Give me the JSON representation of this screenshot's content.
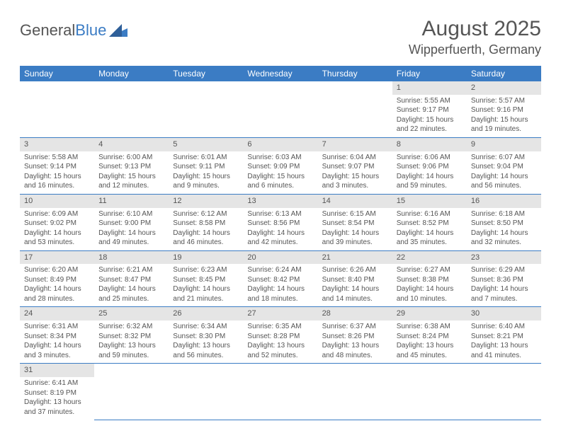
{
  "logo": {
    "text1": "General",
    "text2": "Blue"
  },
  "title": "August 2025",
  "location": "Wipperfuerth, Germany",
  "colors": {
    "header_bg": "#3b7cc4",
    "header_text": "#ffffff",
    "daynum_bg": "#e5e5e5",
    "text": "#555555",
    "row_divider": "#3b7cc4"
  },
  "weekdays": [
    "Sunday",
    "Monday",
    "Tuesday",
    "Wednesday",
    "Thursday",
    "Friday",
    "Saturday"
  ],
  "weeks": [
    [
      null,
      null,
      null,
      null,
      null,
      {
        "n": "1",
        "sr": "5:55 AM",
        "ss": "9:17 PM",
        "dl": "15 hours and 22 minutes."
      },
      {
        "n": "2",
        "sr": "5:57 AM",
        "ss": "9:16 PM",
        "dl": "15 hours and 19 minutes."
      }
    ],
    [
      {
        "n": "3",
        "sr": "5:58 AM",
        "ss": "9:14 PM",
        "dl": "15 hours and 16 minutes."
      },
      {
        "n": "4",
        "sr": "6:00 AM",
        "ss": "9:13 PM",
        "dl": "15 hours and 12 minutes."
      },
      {
        "n": "5",
        "sr": "6:01 AM",
        "ss": "9:11 PM",
        "dl": "15 hours and 9 minutes."
      },
      {
        "n": "6",
        "sr": "6:03 AM",
        "ss": "9:09 PM",
        "dl": "15 hours and 6 minutes."
      },
      {
        "n": "7",
        "sr": "6:04 AM",
        "ss": "9:07 PM",
        "dl": "15 hours and 3 minutes."
      },
      {
        "n": "8",
        "sr": "6:06 AM",
        "ss": "9:06 PM",
        "dl": "14 hours and 59 minutes."
      },
      {
        "n": "9",
        "sr": "6:07 AM",
        "ss": "9:04 PM",
        "dl": "14 hours and 56 minutes."
      }
    ],
    [
      {
        "n": "10",
        "sr": "6:09 AM",
        "ss": "9:02 PM",
        "dl": "14 hours and 53 minutes."
      },
      {
        "n": "11",
        "sr": "6:10 AM",
        "ss": "9:00 PM",
        "dl": "14 hours and 49 minutes."
      },
      {
        "n": "12",
        "sr": "6:12 AM",
        "ss": "8:58 PM",
        "dl": "14 hours and 46 minutes."
      },
      {
        "n": "13",
        "sr": "6:13 AM",
        "ss": "8:56 PM",
        "dl": "14 hours and 42 minutes."
      },
      {
        "n": "14",
        "sr": "6:15 AM",
        "ss": "8:54 PM",
        "dl": "14 hours and 39 minutes."
      },
      {
        "n": "15",
        "sr": "6:16 AM",
        "ss": "8:52 PM",
        "dl": "14 hours and 35 minutes."
      },
      {
        "n": "16",
        "sr": "6:18 AM",
        "ss": "8:50 PM",
        "dl": "14 hours and 32 minutes."
      }
    ],
    [
      {
        "n": "17",
        "sr": "6:20 AM",
        "ss": "8:49 PM",
        "dl": "14 hours and 28 minutes."
      },
      {
        "n": "18",
        "sr": "6:21 AM",
        "ss": "8:47 PM",
        "dl": "14 hours and 25 minutes."
      },
      {
        "n": "19",
        "sr": "6:23 AM",
        "ss": "8:45 PM",
        "dl": "14 hours and 21 minutes."
      },
      {
        "n": "20",
        "sr": "6:24 AM",
        "ss": "8:42 PM",
        "dl": "14 hours and 18 minutes."
      },
      {
        "n": "21",
        "sr": "6:26 AM",
        "ss": "8:40 PM",
        "dl": "14 hours and 14 minutes."
      },
      {
        "n": "22",
        "sr": "6:27 AM",
        "ss": "8:38 PM",
        "dl": "14 hours and 10 minutes."
      },
      {
        "n": "23",
        "sr": "6:29 AM",
        "ss": "8:36 PM",
        "dl": "14 hours and 7 minutes."
      }
    ],
    [
      {
        "n": "24",
        "sr": "6:31 AM",
        "ss": "8:34 PM",
        "dl": "14 hours and 3 minutes."
      },
      {
        "n": "25",
        "sr": "6:32 AM",
        "ss": "8:32 PM",
        "dl": "13 hours and 59 minutes."
      },
      {
        "n": "26",
        "sr": "6:34 AM",
        "ss": "8:30 PM",
        "dl": "13 hours and 56 minutes."
      },
      {
        "n": "27",
        "sr": "6:35 AM",
        "ss": "8:28 PM",
        "dl": "13 hours and 52 minutes."
      },
      {
        "n": "28",
        "sr": "6:37 AM",
        "ss": "8:26 PM",
        "dl": "13 hours and 48 minutes."
      },
      {
        "n": "29",
        "sr": "6:38 AM",
        "ss": "8:24 PM",
        "dl": "13 hours and 45 minutes."
      },
      {
        "n": "30",
        "sr": "6:40 AM",
        "ss": "8:21 PM",
        "dl": "13 hours and 41 minutes."
      }
    ],
    [
      {
        "n": "31",
        "sr": "6:41 AM",
        "ss": "8:19 PM",
        "dl": "13 hours and 37 minutes."
      },
      null,
      null,
      null,
      null,
      null,
      null
    ]
  ],
  "labels": {
    "sunrise": "Sunrise:",
    "sunset": "Sunset:",
    "daylight": "Daylight:"
  }
}
